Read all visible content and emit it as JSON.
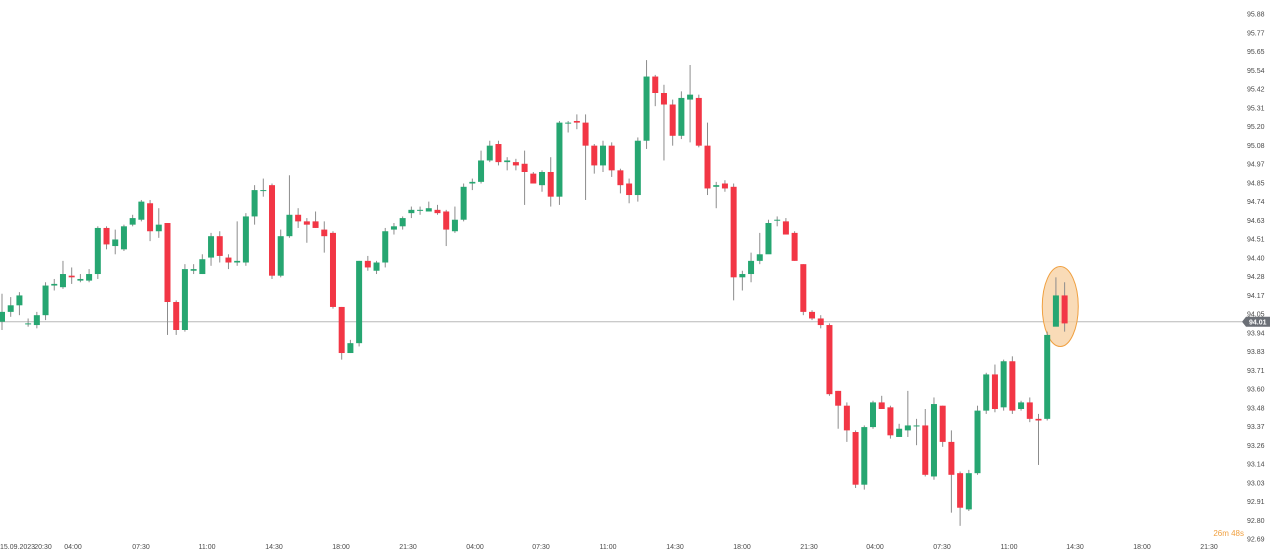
{
  "colors": {
    "up": "#26a671",
    "down": "#f23645",
    "wick": "#8c8c8c",
    "price_line": "#b8b8b8",
    "tag_bg": "#6b6f76",
    "highlight_fill": "#f7cf9f",
    "highlight_stroke": "#f0a040",
    "timer": "#f0a040"
  },
  "timer_text": "26m 48s",
  "price_label": "94.01",
  "chart_data": {
    "type": "candlestick",
    "y_ticks": [
      "95.88",
      "95.77",
      "95.65",
      "95.54",
      "95.42",
      "95.31",
      "95.20",
      "95.08",
      "94.97",
      "94.85",
      "94.74",
      "94.63",
      "94.51",
      "94.40",
      "94.28",
      "94.17",
      "94.05",
      "93.94",
      "93.83",
      "93.71",
      "93.60",
      "93.48",
      "93.37",
      "93.26",
      "93.14",
      "93.03",
      "92.91",
      "92.80",
      "92.69"
    ],
    "x_ticks": [
      "15.09.2023",
      "20:30",
      "04:00",
      "07:30",
      "11:00",
      "14:30",
      "18:00",
      "21:30",
      "04:00",
      "07:30",
      "11:00",
      "14:30",
      "18:00",
      "21:30",
      "04:00",
      "07:30",
      "11:00",
      "14:30",
      "18:00",
      "21:30"
    ],
    "ylim": [
      92.69,
      95.88
    ],
    "current_price": 94.01,
    "candles": [
      [
        94.01,
        94.07,
        94.18,
        93.96
      ],
      [
        94.07,
        94.11,
        94.16,
        94.04
      ],
      [
        94.11,
        94.17,
        94.19,
        94.05
      ],
      [
        94.0,
        94.0,
        94.03,
        93.98
      ],
      [
        93.99,
        94.05,
        94.07,
        93.97
      ],
      [
        94.05,
        94.23,
        94.25,
        94.02
      ],
      [
        94.23,
        94.24,
        94.27,
        94.2
      ],
      [
        94.22,
        94.3,
        94.38,
        94.21
      ],
      [
        94.29,
        94.28,
        94.34,
        94.24
      ],
      [
        94.26,
        94.27,
        94.3,
        94.25
      ],
      [
        94.26,
        94.3,
        94.33,
        94.25
      ],
      [
        94.3,
        94.58,
        94.59,
        94.27
      ],
      [
        94.58,
        94.48,
        94.59,
        94.45
      ],
      [
        94.47,
        94.51,
        94.57,
        94.42
      ],
      [
        94.45,
        94.59,
        94.6,
        94.44
      ],
      [
        94.6,
        94.64,
        94.66,
        94.59
      ],
      [
        94.63,
        94.74,
        94.75,
        94.62
      ],
      [
        94.73,
        94.56,
        94.75,
        94.5
      ],
      [
        94.56,
        94.6,
        94.7,
        94.52
      ],
      [
        94.61,
        94.13,
        94.61,
        93.93
      ],
      [
        94.13,
        93.96,
        94.14,
        93.93
      ],
      [
        93.96,
        94.33,
        94.36,
        93.95
      ],
      [
        94.32,
        94.33,
        94.36,
        94.3
      ],
      [
        94.3,
        94.39,
        94.42,
        94.3
      ],
      [
        94.4,
        94.53,
        94.55,
        94.35
      ],
      [
        94.53,
        94.41,
        94.56,
        94.37
      ],
      [
        94.4,
        94.37,
        94.42,
        94.33
      ],
      [
        94.37,
        94.38,
        94.62,
        94.35
      ],
      [
        94.37,
        94.65,
        94.67,
        94.35
      ],
      [
        94.65,
        94.81,
        94.84,
        94.6
      ],
      [
        94.81,
        94.81,
        94.88,
        94.77
      ],
      [
        94.84,
        94.29,
        94.85,
        94.27
      ],
      [
        94.29,
        94.53,
        94.57,
        94.28
      ],
      [
        94.53,
        94.66,
        94.9,
        94.52
      ],
      [
        94.66,
        94.62,
        94.7,
        94.58
      ],
      [
        94.62,
        94.6,
        94.64,
        94.49
      ],
      [
        94.62,
        94.58,
        94.68,
        94.58
      ],
      [
        94.57,
        94.53,
        94.62,
        94.43
      ],
      [
        94.55,
        94.1,
        94.56,
        94.09
      ],
      [
        94.1,
        93.82,
        94.1,
        93.78
      ],
      [
        93.82,
        93.88,
        93.9,
        93.82
      ],
      [
        93.88,
        94.38,
        94.38,
        93.86
      ],
      [
        94.38,
        94.34,
        94.41,
        94.32
      ],
      [
        94.32,
        94.37,
        94.38,
        94.3
      ],
      [
        94.37,
        94.56,
        94.58,
        94.34
      ],
      [
        94.57,
        94.59,
        94.61,
        94.54
      ],
      [
        94.59,
        94.64,
        94.65,
        94.57
      ],
      [
        94.67,
        94.69,
        94.71,
        94.64
      ],
      [
        94.69,
        94.69,
        94.71,
        94.66
      ],
      [
        94.68,
        94.7,
        94.74,
        94.68
      ],
      [
        94.69,
        94.67,
        94.72,
        94.66
      ],
      [
        94.68,
        94.57,
        94.69,
        94.47
      ],
      [
        94.56,
        94.63,
        94.71,
        94.55
      ],
      [
        94.63,
        94.83,
        94.85,
        94.62
      ],
      [
        94.85,
        94.86,
        94.88,
        94.81
      ],
      [
        94.86,
        94.99,
        95.05,
        94.85
      ],
      [
        94.99,
        95.08,
        95.11,
        94.98
      ],
      [
        95.09,
        94.98,
        95.11,
        94.96
      ],
      [
        94.98,
        94.99,
        95.01,
        94.93
      ],
      [
        94.98,
        94.96,
        95.0,
        94.93
      ],
      [
        94.97,
        94.92,
        95.05,
        94.72
      ],
      [
        94.91,
        94.85,
        94.92,
        94.85
      ],
      [
        94.84,
        94.92,
        94.93,
        94.8
      ],
      [
        94.92,
        94.77,
        95.01,
        94.71
      ],
      [
        94.77,
        95.22,
        95.23,
        94.72
      ],
      [
        95.22,
        95.22,
        95.23,
        95.16
      ],
      [
        95.23,
        95.22,
        95.27,
        95.18
      ],
      [
        95.22,
        95.08,
        95.27,
        94.75
      ],
      [
        95.08,
        94.96,
        95.09,
        94.91
      ],
      [
        94.96,
        95.08,
        95.11,
        94.92
      ],
      [
        95.08,
        94.93,
        95.1,
        94.89
      ],
      [
        94.93,
        94.84,
        94.94,
        94.79
      ],
      [
        94.85,
        94.78,
        94.88,
        94.73
      ],
      [
        94.78,
        95.11,
        95.13,
        94.74
      ],
      [
        95.11,
        95.5,
        95.6,
        95.06
      ],
      [
        95.5,
        95.4,
        95.51,
        95.32
      ],
      [
        95.4,
        95.33,
        95.45,
        94.99
      ],
      [
        95.33,
        95.14,
        95.36,
        95.08
      ],
      [
        95.14,
        95.37,
        95.41,
        95.12
      ],
      [
        95.36,
        95.39,
        95.57,
        95.1
      ],
      [
        95.37,
        95.08,
        95.39,
        95.07
      ],
      [
        95.08,
        94.82,
        95.22,
        94.78
      ],
      [
        94.83,
        94.84,
        94.86,
        94.7
      ],
      [
        94.85,
        94.82,
        94.87,
        94.8
      ],
      [
        94.83,
        94.28,
        94.85,
        94.14
      ],
      [
        94.28,
        94.3,
        94.32,
        94.2
      ],
      [
        94.3,
        94.38,
        94.43,
        94.25
      ],
      [
        94.38,
        94.42,
        94.55,
        94.36
      ],
      [
        94.42,
        94.61,
        94.63,
        94.43
      ],
      [
        94.63,
        94.63,
        94.65,
        94.59
      ],
      [
        94.62,
        94.54,
        94.64,
        94.54
      ],
      [
        94.55,
        94.38,
        94.56,
        94.38
      ],
      [
        94.36,
        94.07,
        94.36,
        94.05
      ],
      [
        94.07,
        94.03,
        94.08,
        94.02
      ],
      [
        94.03,
        93.99,
        94.05,
        93.97
      ],
      [
        93.99,
        93.57,
        94.0,
        93.56
      ],
      [
        93.59,
        93.5,
        93.59,
        93.36
      ],
      [
        93.5,
        93.35,
        93.52,
        93.28
      ],
      [
        93.34,
        93.02,
        93.35,
        93.0
      ],
      [
        93.02,
        93.37,
        93.38,
        92.99
      ],
      [
        93.37,
        93.52,
        93.53,
        93.36
      ],
      [
        93.52,
        93.48,
        93.56,
        93.48
      ],
      [
        93.49,
        93.32,
        93.5,
        93.3
      ],
      [
        93.31,
        93.36,
        93.39,
        93.32
      ],
      [
        93.35,
        93.38,
        93.59,
        93.31
      ],
      [
        93.38,
        93.38,
        93.42,
        93.26
      ],
      [
        93.38,
        93.08,
        93.48,
        93.07
      ],
      [
        93.07,
        93.51,
        93.55,
        93.05
      ],
      [
        93.5,
        93.28,
        93.5,
        93.25
      ],
      [
        93.28,
        93.08,
        93.35,
        92.85
      ],
      [
        93.09,
        92.88,
        93.1,
        92.77
      ],
      [
        92.87,
        93.09,
        93.11,
        92.86
      ],
      [
        93.09,
        93.47,
        93.5,
        93.08
      ],
      [
        93.47,
        93.69,
        93.7,
        93.45
      ],
      [
        93.69,
        93.48,
        93.75,
        93.46
      ],
      [
        93.49,
        93.77,
        93.78,
        93.47
      ],
      [
        93.77,
        93.47,
        93.8,
        93.45
      ],
      [
        93.48,
        93.52,
        93.53,
        93.47
      ],
      [
        93.52,
        93.42,
        93.55,
        93.4
      ],
      [
        93.42,
        93.41,
        93.45,
        93.14
      ],
      [
        93.42,
        93.93,
        93.95,
        93.41
      ],
      [
        93.98,
        94.17,
        94.28,
        94.01
      ],
      [
        94.17,
        94.0,
        94.25,
        93.95
      ]
    ]
  }
}
